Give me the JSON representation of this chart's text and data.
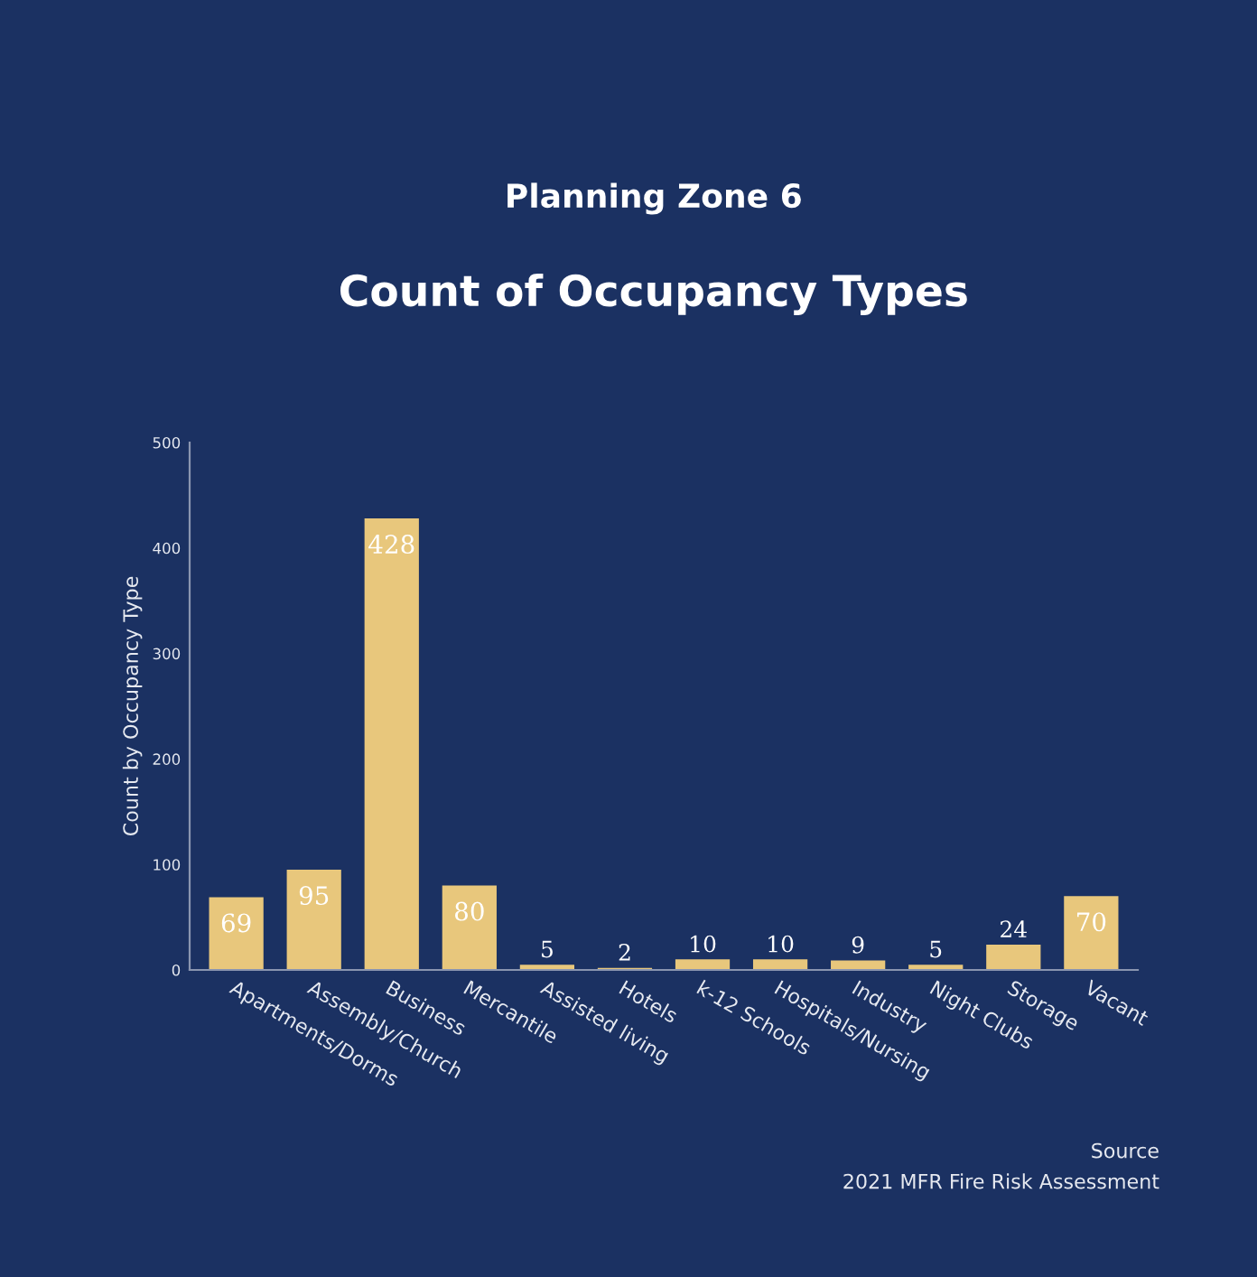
{
  "chart_data": {
    "type": "bar",
    "subtitle": "Planning Zone 6",
    "title": "Count of Occupancy Types",
    "ylabel": "Count by Occupancy Type",
    "categories": [
      "Apartments/Dorms",
      "Assembly/Church",
      "Business",
      "Mercantile",
      "Assisted living",
      "Hotels",
      "k-12 Schools",
      "Hospitals/Nursing",
      "Industry",
      "Night Clubs",
      "Storage",
      "Vacant"
    ],
    "values": [
      69,
      95,
      428,
      80,
      5,
      2,
      10,
      10,
      9,
      5,
      24,
      70
    ],
    "color": "#e8c77c",
    "ylim": [
      0,
      500
    ],
    "yticks": [
      0,
      100,
      200,
      300,
      400,
      500
    ],
    "grid": false,
    "data_labels": true,
    "annotations": [
      "Source",
      "2021 MFR Fire Risk Assessment"
    ]
  }
}
